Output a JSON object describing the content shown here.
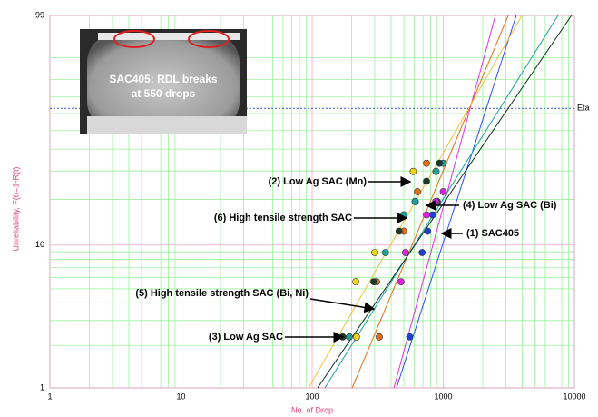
{
  "chart_data": {
    "type": "weibull",
    "xscale": "log",
    "yscale": "weibull",
    "x_label": "No. of Drop",
    "y_label": "Unreliability, F(t)=1-R(t)",
    "xlim": [
      1,
      10000
    ],
    "ylim": [
      1,
      99
    ],
    "xticks": [
      1,
      10,
      100,
      1000,
      10000
    ],
    "yticks": [
      1,
      10,
      99
    ],
    "xminor": [
      2,
      3,
      4,
      5,
      6,
      7,
      8,
      9,
      20,
      30,
      40,
      50,
      60,
      70,
      80,
      90,
      200,
      300,
      400,
      500,
      600,
      700,
      800,
      900,
      2000,
      3000,
      4000,
      5000,
      6000,
      7000,
      8000,
      9000
    ],
    "yminor": [
      2,
      3,
      4,
      5,
      6,
      7,
      8,
      9,
      20,
      30,
      40,
      50,
      60,
      70,
      80,
      90
    ],
    "eta": {
      "value": 63.2,
      "label": "Eta"
    },
    "series": [
      {
        "color": "#1f3fd8",
        "line_color": "#2a4cff",
        "x": [
          555,
          690,
          760,
          830,
          900
        ],
        "values": [
          2.3,
          8.9,
          12.4,
          15.9,
          19.4
        ],
        "fit_x": [
          440,
          3600
        ],
        "fit_values": [
          1,
          99
        ]
      },
      {
        "color": "#e020e0",
        "line_color": "#e030e0",
        "x": [
          476,
          515,
          745,
          875,
          1000
        ],
        "values": [
          5.6,
          8.9,
          15.9,
          19.4,
          22.4
        ],
        "fit_x": [
          420,
          2500
        ],
        "fit_values": [
          1,
          99
        ]
      },
      {
        "color": "#e86a1a",
        "line_color": "#e0701a",
        "x": [
          325,
          310,
          500,
          635,
          745
        ],
        "values": [
          2.3,
          5.6,
          12.4,
          22.4,
          33.3
        ],
        "fit_x": [
          202,
          3130
        ],
        "fit_values": [
          1,
          99
        ]
      },
      {
        "color": "#f2d21a",
        "line_color": "#f0c040",
        "x": [
          218,
          215,
          300,
          590,
          610
        ],
        "values": [
          2.3,
          5.6,
          8.9,
          29.8,
          19.4
        ],
        "fit_x": [
          94,
          3980
        ],
        "fit_values": [
          1,
          99
        ]
      },
      {
        "color": "#1aa39a",
        "line_color": "#20a0a0",
        "x": [
          192,
          362,
          500,
          610,
          880,
          1000
        ],
        "values": [
          2.3,
          8.9,
          15.9,
          19.4,
          29.8,
          33.3
        ],
        "fit_x": [
          125,
          7500
        ],
        "fit_values": [
          1,
          99
        ]
      },
      {
        "color": "#1a3a2a",
        "line_color": "#0a3020",
        "x": [
          171,
          295,
          460,
          745,
          935
        ],
        "values": [
          2.3,
          5.6,
          12.4,
          26.0,
          33.3
        ],
        "fit_x": [
          110,
          9500
        ],
        "fit_values": [
          1,
          99
        ]
      }
    ],
    "annotations": [
      "(2) Low Ag SAC (Mn)",
      "(4) Low Ag SAC (Bi)",
      "(6) High tensile strength SAC",
      "(1) SAC405",
      "(5) High tensile strength  SAC (Bi, Ni)",
      "(3) Low Ag SAC"
    ],
    "inset": [
      "SAC405: RDL breaks",
      "at 550 drops"
    ]
  }
}
